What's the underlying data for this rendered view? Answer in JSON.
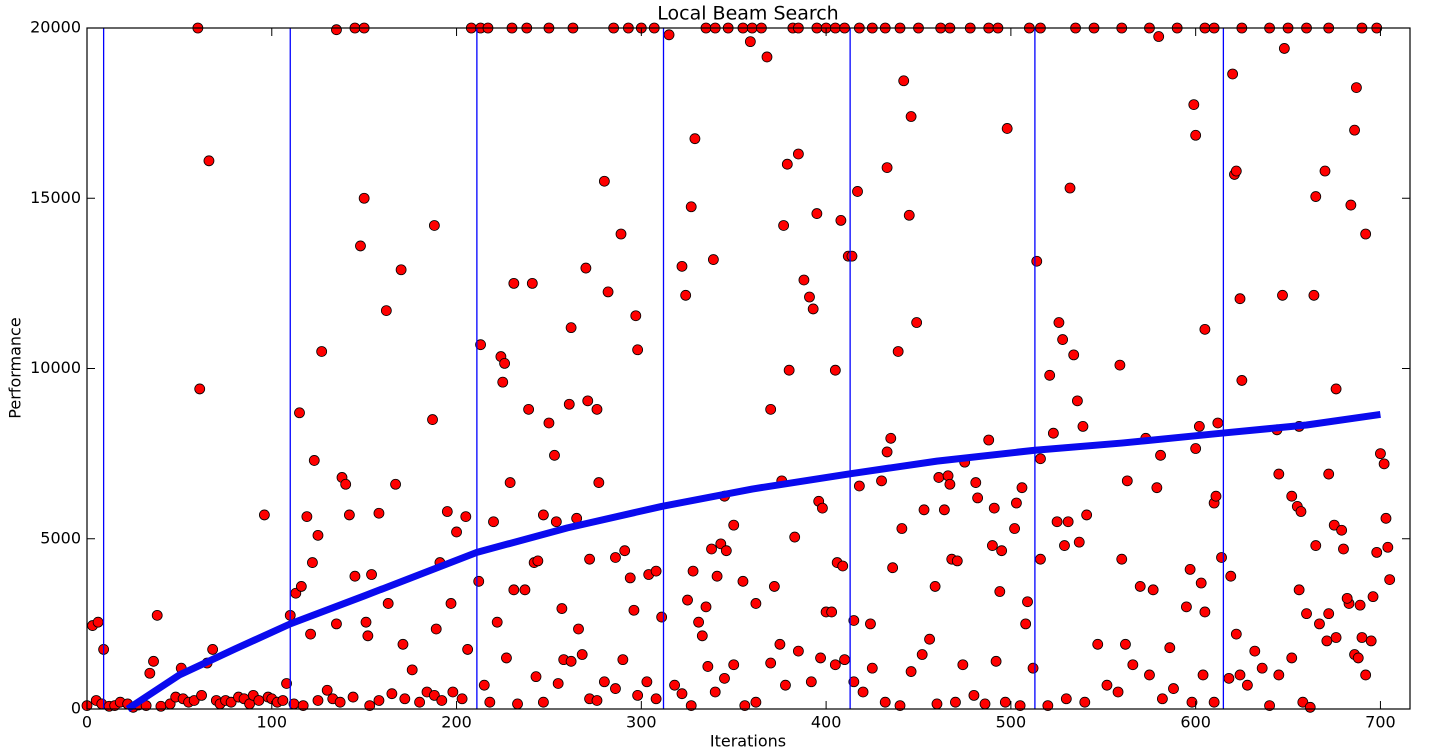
{
  "chart_data": {
    "type": "scatter",
    "title": "Local Beam Search",
    "x_label": "Iterations",
    "y_label": "Performance",
    "xlim": [
      0,
      716
    ],
    "ylim": [
      0,
      20000
    ],
    "xticks": [
      0,
      100,
      200,
      300,
      400,
      500,
      600,
      700
    ],
    "yticks": [
      0,
      5000,
      10000,
      15000,
      20000
    ],
    "vlines": {
      "color": "#0000ff",
      "x": [
        9,
        110,
        211,
        312,
        413,
        513,
        615
      ]
    },
    "series": [
      {
        "type": "scatter",
        "color": "#ff0000",
        "x": [
          60,
          135,
          145,
          150,
          208,
          213,
          217,
          230,
          238,
          250,
          263,
          285,
          293,
          300,
          307,
          315,
          335,
          340,
          347,
          355,
          360,
          365,
          382,
          385,
          395,
          400,
          405,
          410,
          418,
          425,
          432,
          440,
          450,
          462,
          467,
          478,
          488,
          493,
          510,
          516,
          535,
          545,
          560,
          575,
          580,
          590,
          605,
          610,
          625,
          640,
          650,
          660,
          672,
          690,
          698,
          3,
          6,
          9,
          34,
          36,
          38,
          51,
          61,
          65,
          66,
          68,
          96,
          108,
          110,
          113,
          115,
          116,
          119,
          121,
          122,
          123,
          125,
          127,
          135,
          138,
          140,
          142,
          145,
          148,
          150,
          151,
          152,
          154,
          158,
          162,
          163,
          167,
          170,
          171,
          188,
          187,
          189,
          191,
          195,
          197,
          200,
          205,
          206,
          213,
          212,
          220,
          222,
          224,
          225,
          226,
          229,
          231,
          231,
          237,
          239,
          241,
          242,
          244,
          247,
          250,
          253,
          254,
          257,
          261,
          262,
          265,
          266,
          270,
          271,
          272,
          276,
          277,
          280,
          282,
          286,
          289,
          291,
          294,
          297,
          298,
          296,
          304,
          308,
          311,
          322,
          324,
          325,
          327,
          329,
          328,
          331,
          333,
          335,
          339,
          338,
          341,
          343,
          345,
          346,
          350,
          355,
          359,
          362,
          368,
          370,
          372,
          376,
          377,
          379,
          380,
          383,
          385,
          388,
          391,
          393,
          395,
          396,
          398,
          400,
          403,
          405,
          406,
          408,
          409,
          412,
          414,
          415,
          417,
          418,
          424,
          430,
          433,
          433,
          435,
          436,
          439,
          441,
          442,
          445,
          446,
          449,
          453,
          459,
          461,
          464,
          466,
          467,
          468,
          471,
          475,
          481,
          482,
          488,
          490,
          491,
          494,
          495,
          498,
          503,
          502,
          506,
          509,
          508,
          514,
          516,
          516,
          521,
          523,
          525,
          526,
          528,
          529,
          531,
          532,
          534,
          536,
          537,
          539,
          541,
          559,
          560,
          563,
          573,
          579,
          581,
          577,
          597,
          600,
          599,
          600,
          602,
          603,
          605,
          605,
          610,
          611,
          612,
          614,
          619,
          620,
          621,
          622,
          624,
          625,
          622,
          644,
          645,
          647,
          648,
          652,
          655,
          656,
          656,
          657,
          660,
          664,
          665,
          665,
          670,
          672,
          671,
          675,
          676,
          679,
          680,
          683,
          684,
          686,
          687,
          689,
          690,
          692,
          695,
          698,
          700,
          702,
          703,
          704,
          705,
          0,
          5,
          8,
          12,
          15,
          18,
          22,
          25,
          28,
          32,
          40,
          45,
          48,
          52,
          55,
          58,
          62,
          70,
          72,
          75,
          78,
          82,
          85,
          88,
          90,
          93,
          98,
          100,
          103,
          106,
          112,
          117,
          125,
          130,
          133,
          137,
          144,
          153,
          158,
          165,
          172,
          176,
          180,
          184,
          188,
          192,
          198,
          203,
          215,
          218,
          227,
          233,
          243,
          247,
          255,
          258,
          262,
          268,
          272,
          276,
          280,
          286,
          290,
          298,
          303,
          308,
          318,
          322,
          327,
          336,
          340,
          345,
          350,
          356,
          362,
          370,
          375,
          378,
          385,
          392,
          397,
          405,
          410,
          415,
          420,
          425,
          432,
          440,
          446,
          452,
          456,
          460,
          470,
          474,
          480,
          486,
          492,
          497,
          505,
          512,
          520,
          530,
          540,
          547,
          552,
          558,
          562,
          566,
          570,
          575,
          582,
          586,
          588,
          595,
          598,
          604,
          610,
          618,
          624,
          628,
          632,
          636,
          640,
          645,
          652,
          658,
          662,
          667,
          672,
          676,
          682,
          686,
          688,
          692,
          696
        ],
        "values": [
          20000,
          19950,
          20000,
          20000,
          20000,
          20000,
          20000,
          20000,
          20000,
          20000,
          20000,
          20000,
          20000,
          20000,
          20000,
          19800,
          20000,
          20000,
          20000,
          20000,
          20000,
          20000,
          20000,
          20000,
          20000,
          20000,
          20000,
          20000,
          20000,
          20000,
          20000,
          20000,
          20000,
          20000,
          20000,
          20000,
          20000,
          20000,
          20000,
          20000,
          20000,
          20000,
          20000,
          20000,
          19750,
          20000,
          20000,
          20000,
          20000,
          20000,
          20000,
          20000,
          20000,
          20000,
          20000,
          2450,
          2550,
          1750,
          1050,
          1400,
          2750,
          1200,
          9400,
          1350,
          16100,
          1750,
          5700,
          750,
          2750,
          3400,
          8700,
          3600,
          5650,
          2200,
          4300,
          7300,
          5100,
          10500,
          2500,
          6800,
          6600,
          5700,
          3900,
          13600,
          15000,
          2550,
          2150,
          3950,
          5750,
          11700,
          3100,
          6600,
          12900,
          1900,
          14200,
          8500,
          2350,
          4300,
          5800,
          3100,
          5200,
          5650,
          1750,
          10700,
          3750,
          5500,
          2550,
          10350,
          9600,
          10150,
          6650,
          12500,
          3500,
          3500,
          8800,
          12500,
          4300,
          4350,
          5700,
          8400,
          7450,
          5500,
          2950,
          8950,
          11200,
          5600,
          2350,
          12950,
          9050,
          4400,
          8800,
          6650,
          15500,
          12250,
          4450,
          13950,
          4650,
          3850,
          11550,
          10550,
          2900,
          3950,
          4050,
          2700,
          13000,
          12150,
          3200,
          14750,
          16750,
          4050,
          2550,
          2150,
          3000,
          13200,
          4700,
          3900,
          4850,
          6250,
          4650,
          5400,
          3750,
          19600,
          3100,
          19150,
          8800,
          3600,
          6700,
          14200,
          16000,
          9950,
          5050,
          16300,
          12600,
          12100,
          11750,
          14550,
          6100,
          5900,
          2850,
          2850,
          9950,
          4300,
          14350,
          4200,
          13300,
          13300,
          2600,
          15200,
          6550,
          2500,
          6700,
          7550,
          15900,
          7950,
          4150,
          10500,
          5300,
          18450,
          14500,
          17400,
          11350,
          5850,
          3600,
          6800,
          5850,
          6850,
          6600,
          4400,
          4350,
          7250,
          6650,
          6200,
          7900,
          4800,
          5900,
          3450,
          4650,
          17050,
          6050,
          5300,
          6500,
          3150,
          2500,
          13150,
          7350,
          4400,
          9800,
          8100,
          5500,
          11350,
          10850,
          4800,
          5500,
          15300,
          10400,
          9050,
          4900,
          8300,
          5700,
          10100,
          4400,
          6700,
          7950,
          6500,
          7450,
          3500,
          4100,
          16850,
          17750,
          7650,
          8300,
          3700,
          2850,
          11150,
          6050,
          6250,
          8400,
          4450,
          3900,
          18650,
          15700,
          15800,
          12050,
          9650,
          2200,
          8200,
          6900,
          12150,
          19400,
          6250,
          5950,
          3500,
          8300,
          5800,
          2800,
          12150,
          15050,
          4800,
          15800,
          6900,
          2000,
          5400,
          9400,
          5250,
          4700,
          3100,
          14800,
          17000,
          18250,
          3050,
          2100,
          13950,
          2000,
          4600,
          7500,
          7200,
          5600,
          4750,
          3800,
          100,
          250,
          150,
          80,
          100,
          200,
          150,
          50,
          120,
          100,
          80,
          150,
          350,
          300,
          200,
          250,
          400,
          250,
          150,
          250,
          200,
          350,
          300,
          150,
          400,
          250,
          350,
          300,
          200,
          250,
          150,
          100,
          250,
          550,
          300,
          200,
          350,
          100,
          250,
          450,
          300,
          1150,
          200,
          500,
          400,
          250,
          500,
          300,
          700,
          200,
          1500,
          150,
          950,
          200,
          750,
          1450,
          1400,
          1600,
          300,
          250,
          800,
          600,
          1450,
          400,
          800,
          300,
          700,
          450,
          100,
          1250,
          500,
          900,
          1300,
          100,
          200,
          1350,
          1900,
          700,
          1700,
          800,
          1500,
          1300,
          1450,
          800,
          500,
          1200,
          200,
          100,
          1100,
          1600,
          2050,
          150,
          200,
          1300,
          400,
          150,
          1400,
          200,
          100,
          1200,
          100,
          300,
          200,
          1900,
          700,
          500,
          1900,
          1300,
          3600,
          1000,
          300,
          1800,
          600,
          3000,
          200,
          1000,
          200,
          900,
          1000,
          700,
          1700,
          1200,
          100,
          1000,
          1500,
          200,
          50,
          2500,
          2800,
          2100,
          3250,
          1600,
          1500,
          1000,
          3300
        ]
      },
      {
        "type": "line",
        "color": "#0a0aee",
        "x": [
          22,
          50,
          80,
          110,
          150,
          211,
          260,
          311,
          360,
          412,
          460,
          513,
          560,
          614,
          660,
          700
        ],
        "values": [
          0,
          1000,
          1760,
          2500,
          3320,
          4600,
          5320,
          5950,
          6460,
          6900,
          7280,
          7600,
          7810,
          8100,
          8340,
          8650
        ]
      }
    ]
  }
}
